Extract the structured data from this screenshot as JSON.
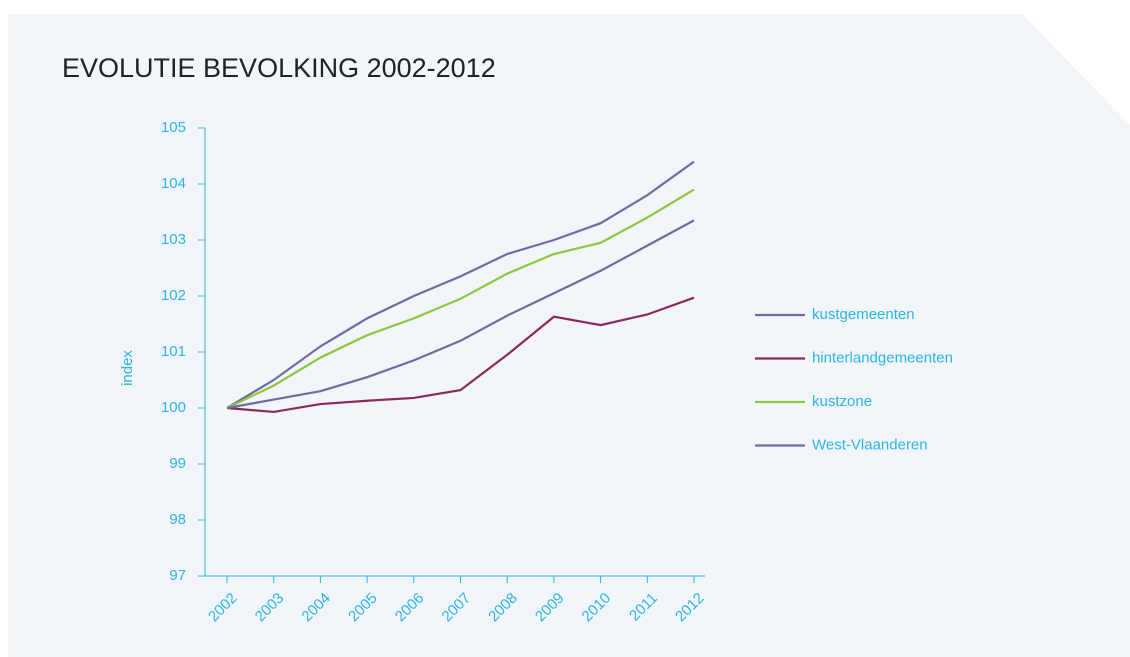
{
  "chart_data": {
    "type": "line",
    "title": "EVOLUTIE BEVOLKING 2002-2012",
    "y_label": "index",
    "categories": [
      "2002",
      "2003",
      "2004",
      "2005",
      "2006",
      "2007",
      "2008",
      "2009",
      "2010",
      "2011",
      "2012"
    ],
    "series": [
      {
        "name": "kustgemeenten",
        "color": "#6b6e9e",
        "values": [
          100,
          100.5,
          101.1,
          101.6,
          102.0,
          102.35,
          102.75,
          103.0,
          103.3,
          103.8,
          104.4
        ]
      },
      {
        "name": "hinterlandgemeenten",
        "color": "#8b2a5a",
        "values": [
          100,
          99.93,
          100.07,
          100.13,
          100.18,
          100.32,
          100.95,
          101.63,
          101.48,
          101.67,
          101.97
        ]
      },
      {
        "name": "kustzone",
        "color": "#8dc63f",
        "values": [
          100,
          100.4,
          100.9,
          101.3,
          101.6,
          101.95,
          102.4,
          102.75,
          102.95,
          103.4,
          103.9
        ]
      },
      {
        "name": "West-Vlaanderen",
        "color": "#6b6e9e",
        "values": [
          100,
          100.15,
          100.3,
          100.55,
          100.85,
          101.2,
          101.65,
          102.05,
          102.45,
          102.9,
          103.35
        ]
      }
    ],
    "ylim": [
      97,
      105
    ],
    "yticks": [
      97,
      98,
      99,
      100,
      101,
      102,
      103,
      104,
      105
    ],
    "legend": "right"
  }
}
